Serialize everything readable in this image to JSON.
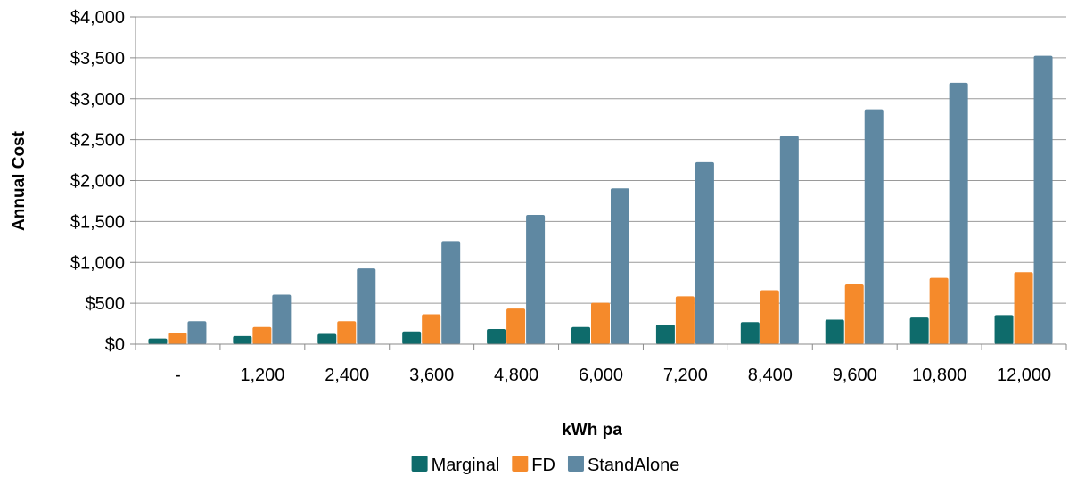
{
  "chart_data": {
    "type": "bar",
    "title": "",
    "xlabel": "kWh pa",
    "ylabel": "Annual Cost",
    "categories": [
      "-",
      "1,200",
      "2,400",
      "3,600",
      "4,800",
      "6,000",
      "7,200",
      "8,400",
      "9,600",
      "10,800",
      "12,000"
    ],
    "series": [
      {
        "name": "Marginal",
        "color": "#0e6b6b",
        "values": [
          70,
          100,
          125,
          155,
          185,
          210,
          240,
          270,
          300,
          325,
          355
        ]
      },
      {
        "name": "FD",
        "color": "#f58a2b",
        "values": [
          140,
          210,
          280,
          365,
          435,
          505,
          585,
          660,
          730,
          810,
          880
        ]
      },
      {
        "name": "StandAlone",
        "color": "#5f88a2",
        "values": [
          280,
          605,
          925,
          1260,
          1580,
          1905,
          2225,
          2545,
          2870,
          3195,
          3525
        ]
      }
    ],
    "ylim": [
      0,
      4000
    ],
    "yticks": [
      0,
      500,
      1000,
      1500,
      2000,
      2500,
      3000,
      3500,
      4000
    ],
    "ytick_labels": [
      "$0",
      "$500",
      "$1,000",
      "$1,500",
      "$2,000",
      "$2,500",
      "$3,000",
      "$3,500",
      "$4,000"
    ],
    "grid": true,
    "legend_position": "bottom"
  }
}
